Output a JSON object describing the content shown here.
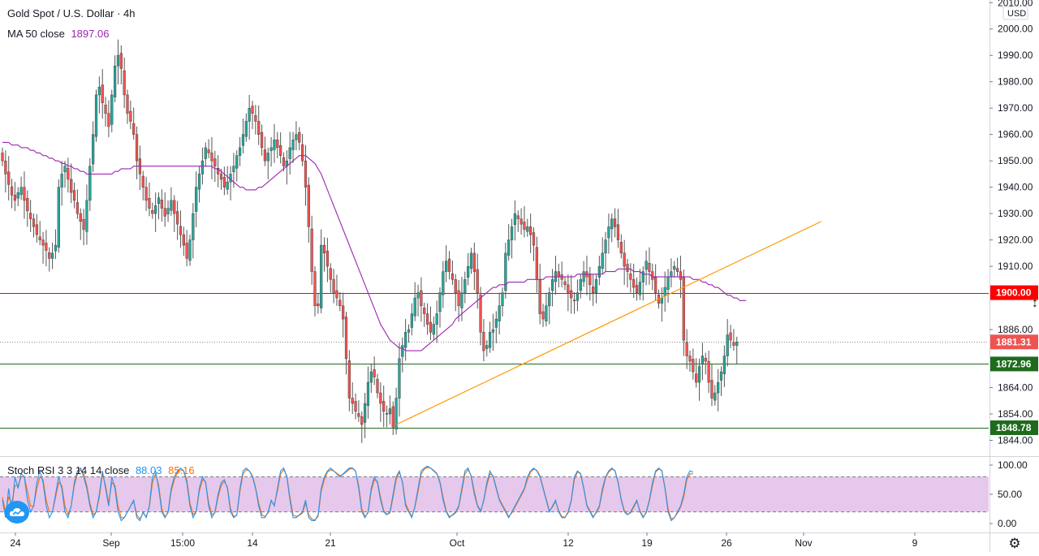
{
  "header": {
    "symbol": "Gold Spot / U.S. Dollar · 4h",
    "ma_label": "MA 50 close",
    "ma_value": "1897.06"
  },
  "stoch": {
    "label": "Stoch RSI 3 3 14 14 close",
    "k_value": "88.03",
    "d_value": "85.16"
  },
  "price_axis": {
    "currency": "USD",
    "ticks": [
      "2010.00",
      "2000.00",
      "1990.00",
      "1980.00",
      "1970.00",
      "1960.00",
      "1950.00",
      "1940.00",
      "1930.00",
      "1920.00",
      "1910.00",
      "1886.00",
      "1864.00",
      "1854.00",
      "1844.00"
    ],
    "badges": [
      {
        "label": "1900.00",
        "color": "#ff0000"
      },
      {
        "label": "1881.31",
        "color": "#ef5350"
      },
      {
        "label": "1872.96",
        "color": "#1e6b1e"
      },
      {
        "label": "1848.78",
        "color": "#1e6b1e"
      }
    ]
  },
  "stoch_axis": {
    "ticks": [
      "100.00",
      "50.00",
      "0.00"
    ]
  },
  "time_axis": {
    "labels": [
      "24",
      "Sep",
      "15:00",
      "14",
      "21",
      "Oct",
      "12",
      "19",
      "26",
      "Nov",
      "9"
    ]
  },
  "colors": {
    "up": "#26a69a",
    "down": "#ef5350",
    "ma": "#9c27b0",
    "trend": "#ff9800",
    "k": "#2196f3",
    "d": "#ff6d00",
    "band": "#e1bee7"
  },
  "chart_data": {
    "type": "candlestick",
    "title": "Gold Spot / U.S. Dollar · 4h",
    "ylim": [
      1838,
      2011
    ],
    "horizontal_levels": [
      {
        "price": 1900.0,
        "color": "#ff0000"
      },
      {
        "price": 1881.31,
        "style": "dotted",
        "color": "#888888"
      },
      {
        "price": 1872.96,
        "color": "#1e6b1e"
      },
      {
        "price": 1848.78,
        "color": "#1e6b1e"
      }
    ],
    "trendline": [
      {
        "bar": 126,
        "price": 1850
      },
      {
        "bar": 262,
        "price": 1927
      }
    ],
    "close": [
      1950,
      1945,
      1941,
      1937,
      1935,
      1938,
      1940,
      1935,
      1931,
      1928,
      1925,
      1922,
      1920,
      1918,
      1916,
      1913,
      1915,
      1918,
      1940,
      1945,
      1948,
      1943,
      1938,
      1935,
      1930,
      1927,
      1924,
      1935,
      1948,
      1960,
      1975,
      1978,
      1972,
      1968,
      1963,
      1975,
      1986,
      1990,
      1985,
      1975,
      1968,
      1965,
      1960,
      1950,
      1945,
      1940,
      1935,
      1932,
      1930,
      1933,
      1936,
      1932,
      1929,
      1932,
      1935,
      1930,
      1926,
      1922,
      1918,
      1913,
      1920,
      1930,
      1940,
      1945,
      1950,
      1955,
      1953,
      1950,
      1948,
      1945,
      1943,
      1940,
      1942,
      1945,
      1948,
      1952,
      1955,
      1960,
      1965,
      1970,
      1968,
      1965,
      1960,
      1955,
      1950,
      1953,
      1955,
      1958,
      1955,
      1952,
      1948,
      1950,
      1955,
      1958,
      1960,
      1957,
      1950,
      1940,
      1925,
      1908,
      1895,
      1895,
      1918,
      1915,
      1910,
      1905,
      1900,
      1898,
      1895,
      1890,
      1875,
      1860,
      1858,
      1855,
      1853,
      1850,
      1858,
      1866,
      1870,
      1868,
      1862,
      1858,
      1855,
      1854,
      1856,
      1849,
      1860,
      1875,
      1880,
      1885,
      1886,
      1892,
      1898,
      1900,
      1895,
      1892,
      1888,
      1885,
      1888,
      1892,
      1900,
      1908,
      1912,
      1908,
      1905,
      1900,
      1895,
      1900,
      1905,
      1910,
      1915,
      1908,
      1900,
      1885,
      1878,
      1880,
      1885,
      1886,
      1890,
      1895,
      1900,
      1915,
      1920,
      1925,
      1930,
      1928,
      1926,
      1924,
      1925,
      1922,
      1918,
      1905,
      1892,
      1890,
      1895,
      1900,
      1905,
      1908,
      1906,
      1905,
      1903,
      1900,
      1898,
      1897,
      1900,
      1905,
      1908,
      1906,
      1903,
      1900,
      1905,
      1910,
      1915,
      1920,
      1925,
      1928,
      1925,
      1920,
      1915,
      1910,
      1908,
      1905,
      1902,
      1900,
      1904,
      1908,
      1912,
      1908,
      1905,
      1900,
      1896,
      1898,
      1902,
      1906,
      1908,
      1910,
      1908,
      1905,
      1882,
      1876,
      1874,
      1870,
      1866,
      1872,
      1876,
      1874,
      1866,
      1860,
      1862,
      1866,
      1870,
      1876,
      1884,
      1882,
      1880,
      1881.31
    ],
    "stoch_k": [
      40,
      10,
      60,
      20,
      80,
      60,
      85,
      80,
      40,
      20,
      30,
      70,
      90,
      70,
      30,
      10,
      20,
      50,
      80,
      60,
      20,
      10,
      30,
      70,
      90,
      95,
      80,
      60,
      30,
      10,
      20,
      50,
      90,
      60,
      30,
      80,
      60,
      20,
      5,
      10,
      20,
      30,
      40,
      10,
      5,
      20,
      10,
      30,
      80,
      90,
      60,
      20,
      10,
      20,
      60,
      80,
      90,
      95,
      90,
      70,
      30,
      10,
      20,
      60,
      80,
      70,
      30,
      10,
      20,
      50,
      70,
      75,
      60,
      20,
      10,
      15,
      60,
      90,
      95,
      90,
      80,
      60,
      30,
      10,
      10,
      20,
      40,
      30,
      60,
      90,
      95,
      80,
      40,
      10,
      10,
      15,
      20,
      40,
      10,
      5,
      5,
      15,
      60,
      80,
      90,
      95,
      90,
      85,
      80,
      85,
      90,
      95,
      95,
      90,
      60,
      20,
      10,
      20,
      60,
      80,
      70,
      40,
      20,
      15,
      20,
      50,
      80,
      90,
      70,
      30,
      20,
      10,
      30,
      60,
      90,
      95,
      98,
      95,
      90,
      85,
      70,
      40,
      20,
      10,
      15,
      20,
      30,
      60,
      90,
      95,
      80,
      50,
      30,
      20,
      40,
      70,
      90,
      80,
      60,
      40,
      30,
      20,
      10,
      20,
      30,
      40,
      50,
      60,
      80,
      90,
      95,
      90,
      80,
      60,
      40,
      20,
      30,
      40,
      20,
      10,
      10,
      20,
      40,
      80,
      90,
      85,
      60,
      30,
      20,
      10,
      20,
      30,
      60,
      80,
      90,
      95,
      90,
      70,
      40,
      20,
      15,
      20,
      30,
      40,
      20,
      10,
      20,
      40,
      70,
      90,
      95,
      90,
      60,
      20,
      5,
      10,
      20,
      30,
      50,
      80,
      90,
      88.03
    ],
    "stoch_d": [
      45,
      20,
      45,
      35,
      65,
      65,
      80,
      80,
      55,
      30,
      30,
      60,
      80,
      75,
      40,
      20,
      20,
      45,
      70,
      65,
      30,
      15,
      30,
      65,
      85,
      92,
      85,
      65,
      35,
      15,
      20,
      45,
      85,
      65,
      35,
      70,
      65,
      30,
      10,
      10,
      20,
      30,
      38,
      15,
      8,
      18,
      12,
      28,
      70,
      85,
      65,
      25,
      12,
      18,
      55,
      75,
      88,
      92,
      90,
      75,
      35,
      15,
      20,
      55,
      75,
      72,
      35,
      15,
      18,
      45,
      65,
      72,
      62,
      25,
      12,
      14,
      55,
      85,
      92,
      90,
      82,
      62,
      35,
      15,
      12,
      18,
      38,
      32,
      55,
      85,
      92,
      82,
      45,
      15,
      12,
      14,
      18,
      35,
      15,
      8,
      6,
      12,
      55,
      75,
      88,
      92,
      90,
      86,
      82,
      84,
      88,
      93,
      94,
      90,
      65,
      25,
      12,
      18,
      55,
      75,
      72,
      45,
      22,
      16,
      18,
      45,
      75,
      88,
      72,
      35,
      22,
      12,
      28,
      55,
      85,
      93,
      96,
      95,
      91,
      86,
      72,
      45,
      22,
      12,
      14,
      18,
      28,
      55,
      85,
      92,
      82,
      55,
      32,
      22,
      38,
      65,
      85,
      82,
      62,
      42,
      32,
      22,
      12,
      18,
      28,
      38,
      48,
      58,
      75,
      88,
      93,
      91,
      82,
      62,
      42,
      22,
      28,
      38,
      22,
      12,
      11,
      18,
      38,
      75,
      88,
      86,
      62,
      32,
      22,
      12,
      18,
      28,
      55,
      78,
      88,
      93,
      91,
      72,
      42,
      22,
      16,
      18,
      28,
      38,
      22,
      12,
      18,
      38,
      65,
      88,
      93,
      91,
      62,
      25,
      8,
      10,
      18,
      28,
      45,
      75,
      85,
      85.16
    ],
    "ma50": [
      1957,
      1957,
      1957,
      1956,
      1956,
      1956,
      1955,
      1955,
      1955,
      1954,
      1954,
      1953,
      1953,
      1952,
      1952,
      1951,
      1951,
      1950,
      1950,
      1949,
      1949,
      1948,
      1948,
      1947,
      1947,
      1946,
      1946,
      1945,
      1945,
      1945,
      1945,
      1945,
      1945,
      1945,
      1945,
      1945,
      1946,
      1946,
      1947,
      1947,
      1947,
      1947,
      1948,
      1948,
      1948,
      1948,
      1948,
      1948,
      1948,
      1948,
      1948,
      1948,
      1948,
      1948,
      1948,
      1948,
      1948,
      1948,
      1948,
      1948,
      1948,
      1948,
      1948,
      1948,
      1948,
      1948,
      1948,
      1948,
      1947,
      1947,
      1946,
      1945,
      1944,
      1943,
      1942,
      1941,
      1940,
      1940,
      1939,
      1939,
      1939,
      1939,
      1940,
      1940,
      1941,
      1942,
      1943,
      1944,
      1945,
      1946,
      1947,
      1948,
      1949,
      1950,
      1951,
      1952,
      1952,
      1952,
      1951,
      1950,
      1949,
      1947,
      1945,
      1942,
      1939,
      1936,
      1933,
      1930,
      1927,
      1924,
      1921,
      1918,
      1915,
      1912,
      1909,
      1906,
      1903,
      1900,
      1897,
      1894,
      1891,
      1888,
      1886,
      1884,
      1882,
      1881,
      1880,
      1879,
      1879,
      1878,
      1878,
      1878,
      1878,
      1878,
      1878,
      1879,
      1880,
      1881,
      1882,
      1883,
      1884,
      1885,
      1886,
      1887,
      1888,
      1890,
      1891,
      1892,
      1893,
      1894,
      1895,
      1896,
      1897,
      1898,
      1899,
      1900,
      1901,
      1902,
      1902,
      1903,
      1903,
      1903,
      1904,
      1904,
      1904,
      1904,
      1904,
      1904,
      1905,
      1905,
      1905,
      1905,
      1905,
      1905,
      1906,
      1906,
      1906,
      1906,
      1906,
      1906,
      1906,
      1906,
      1906,
      1906,
      1907,
      1907,
      1907,
      1907,
      1907,
      1907,
      1907,
      1907,
      1907,
      1908,
      1908,
      1908,
      1908,
      1909,
      1909,
      1909,
      1909,
      1909,
      1908,
      1908,
      1908,
      1907,
      1907,
      1907,
      1906,
      1906,
      1906,
      1906,
      1906,
      1906,
      1906,
      1906,
      1906,
      1906,
      1906,
      1906,
      1906,
      1905,
      1905,
      1905,
      1904,
      1904,
      1903,
      1903,
      1902,
      1902,
      1901,
      1900,
      1899,
      1899,
      1898,
      1898,
      1897,
      1897,
      1897.06
    ]
  }
}
